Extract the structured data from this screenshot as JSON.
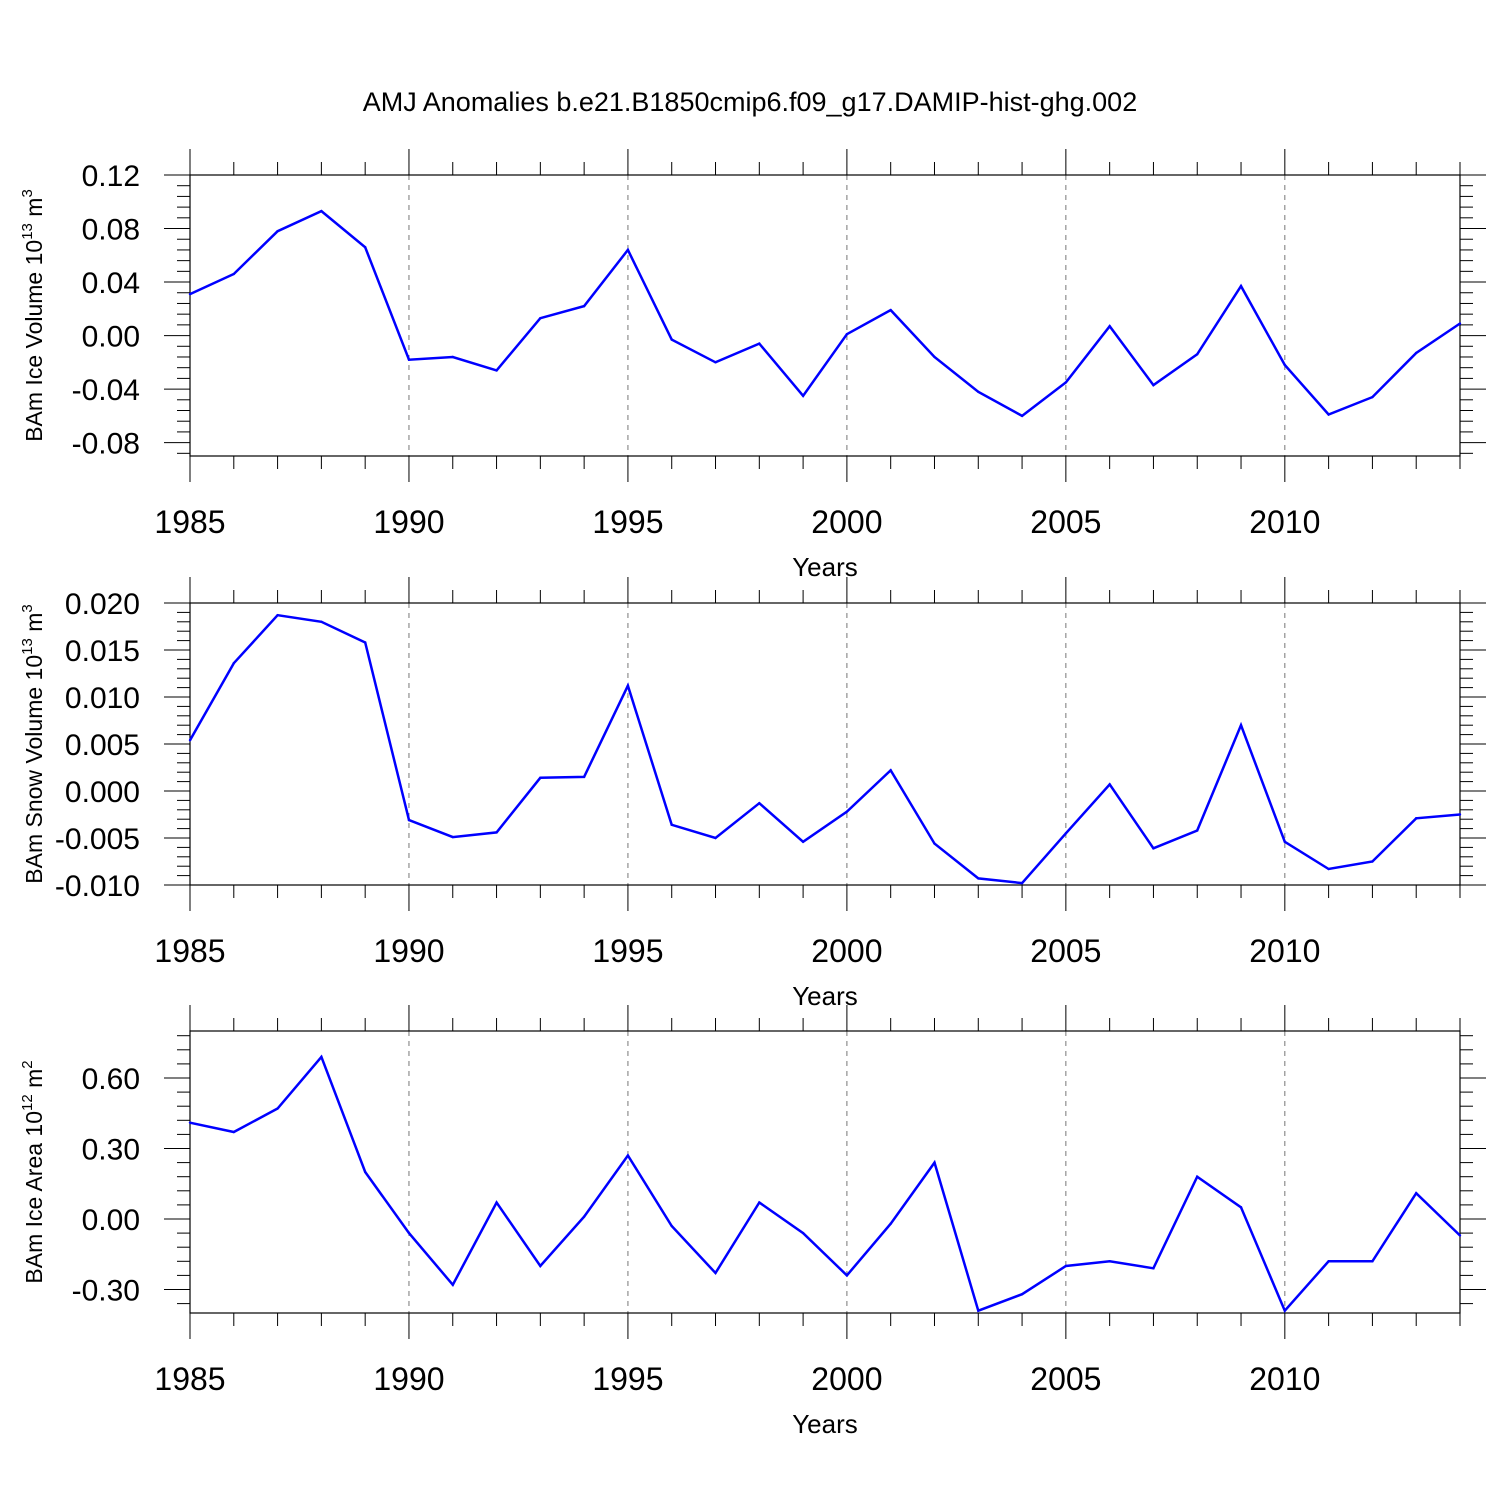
{
  "title": "AMJ Anomalies b.e21.B1850cmip6.f09_g17.DAMIP-hist-ghg.002",
  "chart_data": [
    {
      "type": "line",
      "xlabel": "Years",
      "ylabel": "BAm Ice Volume 10",
      "ylabel_exp": "13",
      "ylabel_unit": " m",
      "ylabel_unit_exp": "3",
      "xlim": [
        1985,
        2014
      ],
      "ylim": [
        -0.09,
        0.12
      ],
      "xticks": [
        1985,
        1990,
        1995,
        2000,
        2005,
        2010
      ],
      "yticks": [
        "0.12",
        "0.08",
        "0.04",
        "0.00",
        "-0.04",
        "-0.08"
      ],
      "grid": "vertical dashed at major x ticks",
      "line_color": "#0000ff",
      "series": [
        {
          "x": [
            1985,
            1986,
            1987,
            1988,
            1989,
            1990,
            1991,
            1992,
            1993,
            1994,
            1995,
            1996,
            1997,
            1998,
            1999,
            2000,
            2001,
            2002,
            2003,
            2004,
            2005,
            2006,
            2007,
            2008,
            2009,
            2010,
            2011,
            2012,
            2013,
            2014
          ],
          "values": [
            0.031,
            0.046,
            0.078,
            0.093,
            0.066,
            -0.018,
            -0.016,
            -0.026,
            0.013,
            0.022,
            0.064,
            -0.003,
            -0.02,
            -0.006,
            -0.045,
            0.001,
            0.019,
            -0.016,
            -0.042,
            -0.06,
            -0.035,
            0.007,
            -0.037,
            -0.014,
            0.037,
            -0.022,
            -0.059,
            -0.046,
            -0.013,
            0.009
          ]
        }
      ]
    },
    {
      "type": "line",
      "xlabel": "Years",
      "ylabel": "BAm Snow Volume 10",
      "ylabel_exp": "13",
      "ylabel_unit": " m",
      "ylabel_unit_exp": "3",
      "xlim": [
        1985,
        2014
      ],
      "ylim": [
        -0.01,
        0.02
      ],
      "xticks": [
        1985,
        1990,
        1995,
        2000,
        2005,
        2010
      ],
      "yticks": [
        "0.020",
        "0.015",
        "0.010",
        "0.005",
        "0.000",
        "-0.005",
        "-0.010"
      ],
      "grid": "vertical dashed at major x ticks",
      "line_color": "#0000ff",
      "series": [
        {
          "x": [
            1985,
            1986,
            1987,
            1988,
            1989,
            1990,
            1991,
            1992,
            1993,
            1994,
            1995,
            1996,
            1997,
            1998,
            1999,
            2000,
            2001,
            2002,
            2003,
            2004,
            2005,
            2006,
            2007,
            2008,
            2009,
            2010,
            2011,
            2012,
            2013,
            2014
          ],
          "values": [
            0.0054,
            0.0136,
            0.0187,
            0.018,
            0.0158,
            -0.0031,
            -0.0049,
            -0.0044,
            0.0014,
            0.0015,
            0.0112,
            -0.0036,
            -0.005,
            -0.0013,
            -0.0054,
            -0.0022,
            0.0022,
            -0.0056,
            -0.0093,
            -0.0098,
            -0.0045,
            0.0007,
            -0.0061,
            -0.0042,
            0.007,
            -0.0054,
            -0.0083,
            -0.0075,
            -0.0029,
            -0.0025
          ]
        }
      ]
    },
    {
      "type": "line",
      "xlabel": "Years",
      "ylabel": "BAm Ice Area 10",
      "ylabel_exp": "12",
      "ylabel_unit": " m",
      "ylabel_unit_exp": "2",
      "xlim": [
        1985,
        2014
      ],
      "ylim": [
        -0.4,
        0.8
      ],
      "xticks": [
        1985,
        1990,
        1995,
        2000,
        2005,
        2010
      ],
      "yticks": [
        "0.60",
        "0.30",
        "0.00",
        "-0.30"
      ],
      "grid": "vertical dashed at major x ticks",
      "line_color": "#0000ff",
      "series": [
        {
          "x": [
            1985,
            1986,
            1987,
            1988,
            1989,
            1990,
            1991,
            1992,
            1993,
            1994,
            1995,
            1996,
            1997,
            1998,
            1999,
            2000,
            2001,
            2002,
            2003,
            2004,
            2005,
            2006,
            2007,
            2008,
            2009,
            2010,
            2011,
            2012,
            2013,
            2014
          ],
          "values": [
            0.41,
            0.37,
            0.47,
            0.69,
            0.2,
            -0.06,
            -0.28,
            0.07,
            -0.2,
            0.01,
            0.27,
            -0.03,
            -0.23,
            0.07,
            -0.06,
            -0.24,
            -0.02,
            0.24,
            -0.39,
            -0.32,
            -0.2,
            -0.18,
            -0.21,
            0.18,
            0.05,
            -0.39,
            -0.18,
            -0.18,
            0.11,
            -0.07
          ]
        }
      ]
    }
  ]
}
